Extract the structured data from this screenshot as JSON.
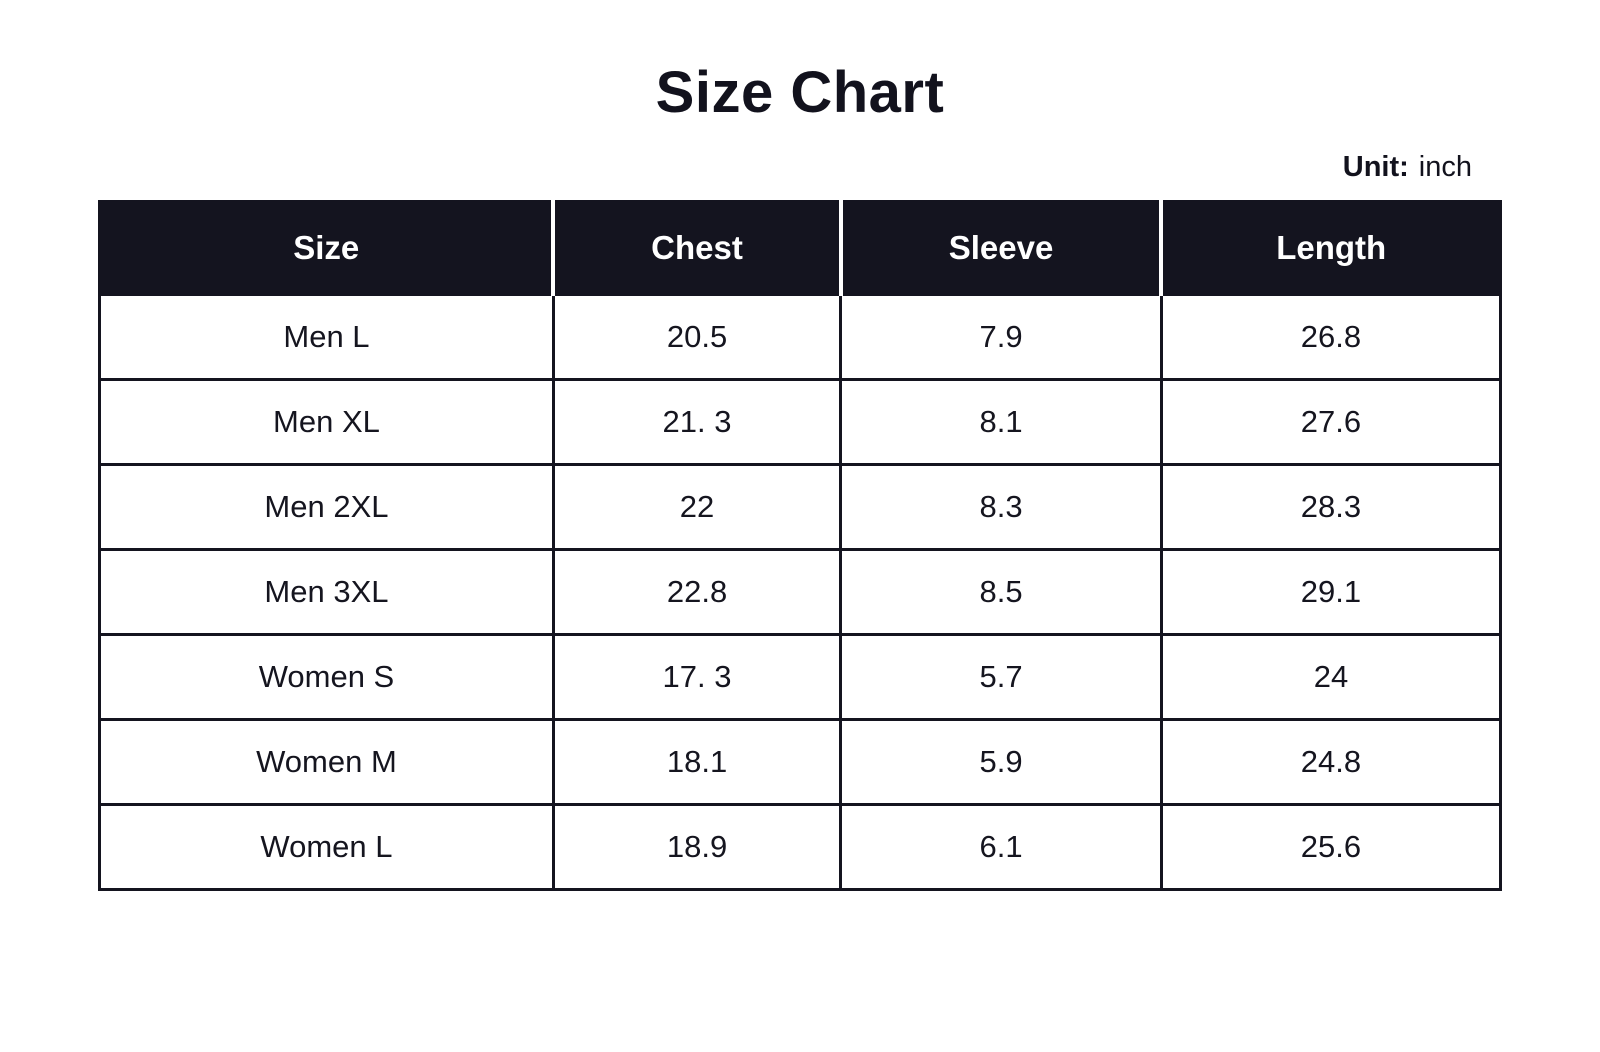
{
  "page": {
    "title": "Size Chart",
    "unit_label": "Unit:",
    "unit_value": "inch"
  },
  "colors": {
    "header_bg": "#14141f",
    "header_text": "#ffffff",
    "body_text": "#15151f",
    "grid_line": "#14141f",
    "background": "#ffffff"
  },
  "table": {
    "columns": [
      "Size",
      "Chest",
      "Sleeve",
      "Length"
    ],
    "rows": [
      {
        "size": "Men L",
        "chest": "20.5",
        "sleeve": "7.9",
        "length": "26.8"
      },
      {
        "size": "Men XL",
        "chest": "21. 3",
        "sleeve": "8.1",
        "length": "27.6"
      },
      {
        "size": "Men 2XL",
        "chest": "22",
        "sleeve": "8.3",
        "length": "28.3"
      },
      {
        "size": "Men 3XL",
        "chest": "22.8",
        "sleeve": "8.5",
        "length": "29.1"
      },
      {
        "size": "Women S",
        "chest": "17. 3",
        "sleeve": "5.7",
        "length": "24"
      },
      {
        "size": "Women M",
        "chest": "18.1",
        "sleeve": "5.9",
        "length": "24.8"
      },
      {
        "size": "Women L",
        "chest": "18.9",
        "sleeve": "6.1",
        "length": "25.6"
      }
    ]
  },
  "chart_data": {
    "type": "table",
    "title": "Size Chart",
    "unit": "inch",
    "columns": [
      "Size",
      "Chest",
      "Sleeve",
      "Length"
    ],
    "rows": [
      [
        "Men L",
        20.5,
        7.9,
        26.8
      ],
      [
        "Men XL",
        21.3,
        8.1,
        27.6
      ],
      [
        "Men 2XL",
        22,
        8.3,
        28.3
      ],
      [
        "Men 3XL",
        22.8,
        8.5,
        29.1
      ],
      [
        "Women S",
        17.3,
        5.7,
        24
      ],
      [
        "Women M",
        18.1,
        5.9,
        24.8
      ],
      [
        "Women L",
        18.9,
        6.1,
        25.6
      ]
    ]
  }
}
